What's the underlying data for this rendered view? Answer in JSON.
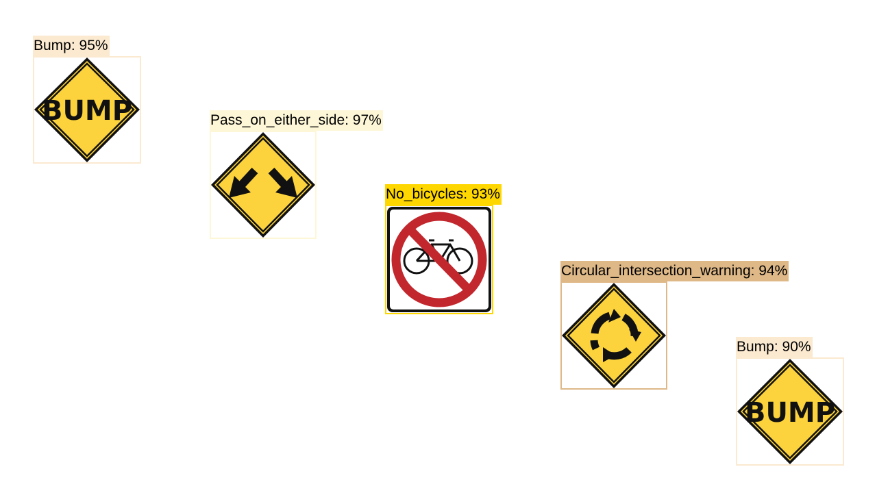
{
  "detections": [
    {
      "label": "Bump: 95%",
      "class": "Bump",
      "confidence": "95%",
      "sign": "bump",
      "sign_text": "BUMP",
      "color": "#fbe9d0",
      "icon": "bump-sign-icon"
    },
    {
      "label": "Pass_on_either_side: 97%",
      "class": "Pass_on_either_side",
      "confidence": "97%",
      "sign": "pass",
      "color": "#fdf7d8",
      "icon": "pass-either-side-sign-icon"
    },
    {
      "label": "No_bicycles: 93%",
      "class": "No_bicycles",
      "confidence": "93%",
      "sign": "no_bicycles",
      "color": "#ffd700",
      "icon": "no-bicycles-sign-icon"
    },
    {
      "label": "Circular_intersection_warning: 94%",
      "class": "Circular_intersection_warning",
      "confidence": "94%",
      "sign": "roundabout",
      "color": "#deb887",
      "icon": "circular-intersection-sign-icon"
    },
    {
      "label": "Bump: 90%",
      "class": "Bump",
      "confidence": "90%",
      "sign": "bump",
      "sign_text": "BUMP",
      "color": "#fbe9d0",
      "icon": "bump-sign-icon"
    }
  ]
}
